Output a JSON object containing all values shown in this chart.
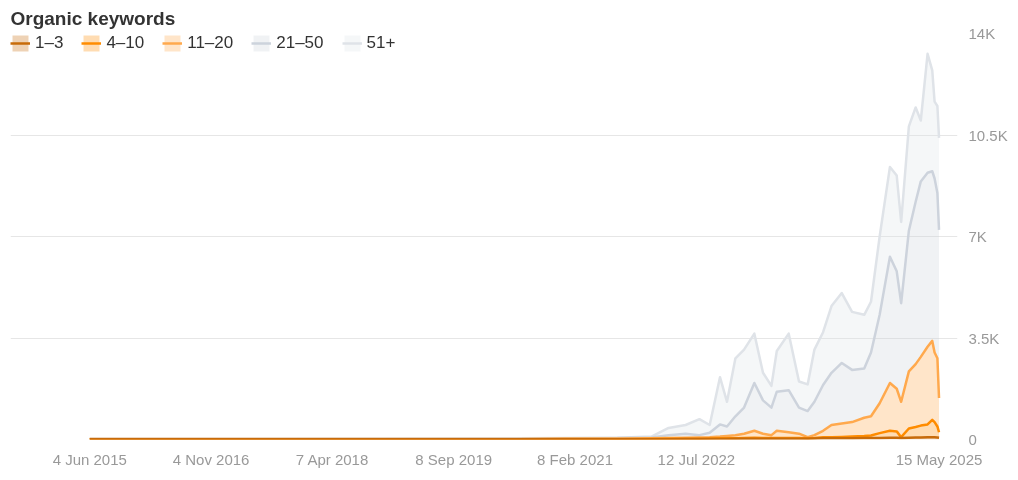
{
  "chart_data": {
    "type": "area",
    "stacked": true,
    "title": "Organic keywords",
    "x": [
      "2015-06-04",
      "2017-01-01",
      "2019-01-01",
      "2020-06-01",
      "2021-01-01",
      "2021-08-07",
      "2022-01-01",
      "2022-03-15",
      "2022-05-27",
      "2022-07-25",
      "2022-09-07",
      "2022-10-21",
      "2022-11-20",
      "2022-12-26",
      "2023-02-01",
      "2023-03-17",
      "2023-04-23",
      "2023-05-29",
      "2023-06-21",
      "2023-08-11",
      "2023-09-24",
      "2023-10-31",
      "2023-11-29",
      "2024-01-05",
      "2024-02-10",
      "2024-03-25",
      "2024-05-08",
      "2024-06-29",
      "2024-07-28",
      "2024-09-03",
      "2024-10-17",
      "2024-11-15",
      "2024-12-04",
      "2025-01-06",
      "2025-02-04",
      "2025-02-26",
      "2025-03-27",
      "2025-04-16",
      "2025-04-26",
      "2025-05-08",
      "2025-05-15"
    ],
    "series": [
      {
        "name": "1–3",
        "color": "#c76b0a",
        "values": [
          5,
          5,
          5,
          5,
          5,
          10,
          10,
          10,
          15,
          15,
          20,
          20,
          20,
          25,
          25,
          30,
          30,
          30,
          30,
          30,
          30,
          30,
          35,
          40,
          40,
          45,
          45,
          50,
          50,
          55,
          60,
          60,
          50,
          60,
          65,
          70,
          75,
          80,
          75,
          70,
          60
        ]
      },
      {
        "name": "4–10",
        "color": "#ff8c00",
        "values": [
          5,
          5,
          5,
          5,
          10,
          10,
          10,
          15,
          15,
          15,
          15,
          20,
          20,
          20,
          25,
          30,
          25,
          20,
          25,
          25,
          20,
          15,
          15,
          35,
          40,
          45,
          55,
          70,
          90,
          165,
          240,
          220,
          30,
          320,
          365,
          410,
          445,
          600,
          525,
          380,
          190
        ]
      },
      {
        "name": "11–20",
        "color": "#ffa94d",
        "values": [
          5,
          5,
          5,
          10,
          10,
          10,
          20,
          25,
          30,
          40,
          45,
          60,
          80,
          105,
          150,
          240,
          145,
          100,
          245,
          195,
          150,
          35,
          100,
          225,
          420,
          460,
          500,
          630,
          660,
          1030,
          1650,
          1470,
          1220,
          1970,
          2170,
          2370,
          2680,
          2720,
          2400,
          2350,
          1180
        ]
      },
      {
        "name": "21–50",
        "color": "#cdd3dc",
        "values": [
          5,
          5,
          10,
          10,
          15,
          20,
          30,
          100,
          140,
          80,
          150,
          420,
          330,
          650,
          900,
          1650,
          1150,
          950,
          1350,
          1450,
          900,
          900,
          1150,
          1580,
          1800,
          2090,
          1800,
          1700,
          2200,
          3050,
          4350,
          4050,
          3400,
          4850,
          5600,
          6050,
          6000,
          5850,
          6000,
          5700,
          5800
        ]
      },
      {
        "name": "51+",
        "color": "#dfe3e8",
        "values": [
          5,
          5,
          5,
          10,
          10,
          10,
          30,
          250,
          300,
          550,
          270,
          1630,
          850,
          2000,
          2000,
          1700,
          950,
          750,
          1400,
          1950,
          900,
          920,
          1800,
          1820,
          2300,
          2410,
          2000,
          1850,
          1750,
          2700,
          3100,
          3300,
          2800,
          3600,
          3250,
          2100,
          4100,
          3480,
          2650,
          3000,
          3170
        ]
      }
    ],
    "xlim": [
      "2014-06-30",
      "2025-08-02"
    ],
    "xticks": [
      {
        "value": "2015-06-04",
        "label": "4 Jun 2015"
      },
      {
        "value": "2016-11-04",
        "label": "4 Nov 2016"
      },
      {
        "value": "2018-04-07",
        "label": "7 Apr 2018"
      },
      {
        "value": "2019-09-08",
        "label": "8 Sep 2019"
      },
      {
        "value": "2021-02-08",
        "label": "8 Feb 2021"
      },
      {
        "value": "2022-07-12",
        "label": "12 Jul 2022"
      },
      {
        "value": "2025-05-15",
        "label": "15 May 2025"
      }
    ],
    "ylim": [
      0,
      14000
    ],
    "yticks": [
      {
        "value": 0,
        "label": "0"
      },
      {
        "value": 3500,
        "label": "3.5K"
      },
      {
        "value": 7000,
        "label": "7K"
      },
      {
        "value": 10500,
        "label": "10.5K"
      },
      {
        "value": 14000,
        "label": "14K"
      }
    ],
    "grid": "y",
    "legend": "top",
    "marker": "none",
    "line_style": "solid"
  }
}
